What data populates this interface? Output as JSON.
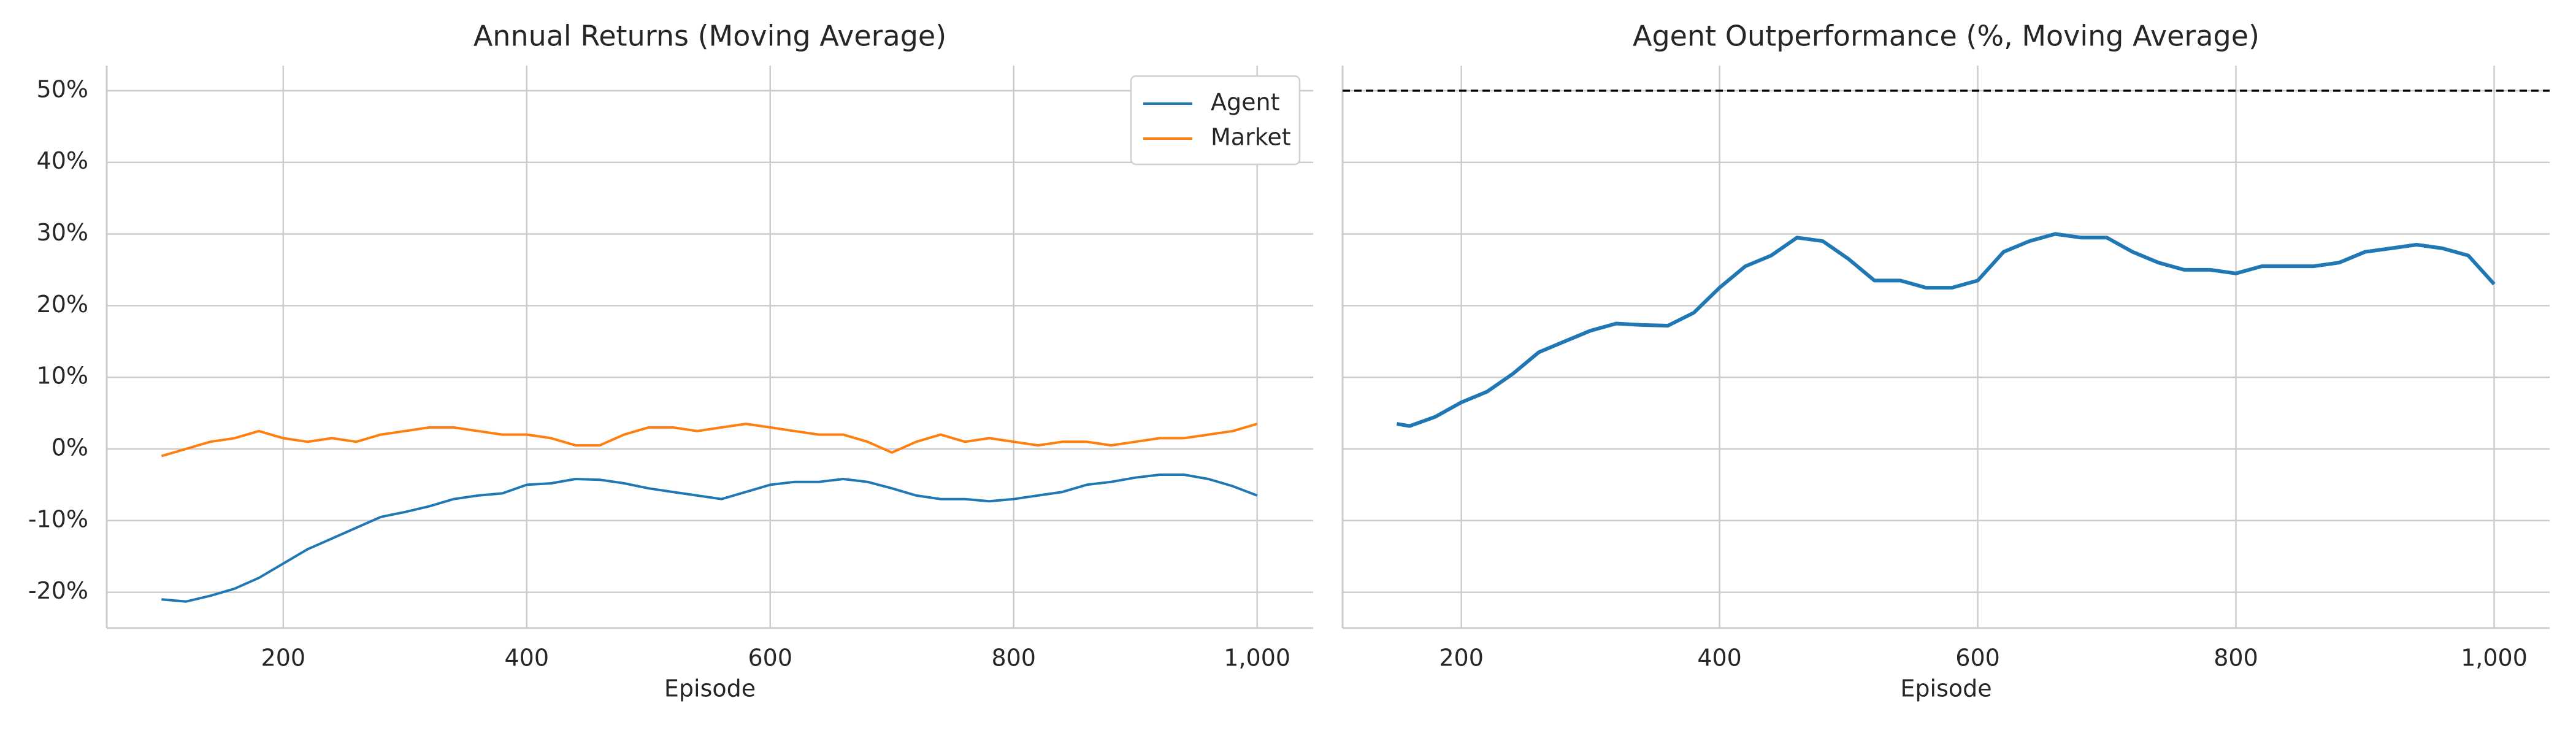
{
  "chart_data": [
    {
      "type": "line",
      "title": "Annual Returns (Moving Average)",
      "xlabel": "Episode",
      "x": [
        100,
        120,
        140,
        160,
        180,
        200,
        220,
        240,
        260,
        280,
        300,
        320,
        340,
        360,
        380,
        400,
        420,
        440,
        460,
        480,
        500,
        520,
        540,
        560,
        580,
        600,
        620,
        640,
        660,
        680,
        700,
        720,
        740,
        760,
        780,
        800,
        820,
        840,
        860,
        880,
        900,
        920,
        940,
        960,
        980,
        1000
      ],
      "series": [
        {
          "name": "Agent",
          "color": "#1f77b4",
          "values": [
            -21,
            -21.3,
            -20.5,
            -19.5,
            -18,
            -16,
            -14,
            -12.5,
            -11,
            -9.5,
            -8.8,
            -8,
            -7,
            -6.5,
            -6.2,
            -5,
            -4.8,
            -4.2,
            -4.3,
            -4.8,
            -5.5,
            -6,
            -6.5,
            -7,
            -6,
            -5,
            -4.6,
            -4.6,
            -4.2,
            -4.6,
            -5.5,
            -6.5,
            -7,
            -7,
            -7.3,
            -7,
            -6.5,
            -6,
            -5,
            -4.6,
            -4,
            -3.6,
            -3.6,
            -4.2,
            -5.2,
            -6.5
          ]
        },
        {
          "name": "Market",
          "color": "#ff7f0e",
          "values": [
            -1,
            0,
            1,
            1.5,
            2.5,
            1.5,
            1,
            1.5,
            1,
            2,
            2.5,
            3,
            3,
            2.5,
            2,
            2,
            1.5,
            0.5,
            0.5,
            2,
            3,
            3,
            2.5,
            3,
            3.5,
            3,
            2.5,
            2,
            2,
            1,
            -0.5,
            1,
            2,
            1,
            1.5,
            1,
            0.5,
            1,
            1,
            0.5,
            1,
            1.5,
            1.5,
            2,
            2.5,
            3.5
          ]
        }
      ],
      "xlim": [
        55,
        1046
      ],
      "xticks": [
        200,
        400,
        600,
        800,
        {
          "value": 1000,
          "label": "1,000"
        }
      ],
      "ylim": [
        -25,
        53.5
      ],
      "yticks": [
        {
          "value": -20,
          "label": "-20%"
        },
        {
          "value": -10,
          "label": "-10%"
        },
        {
          "value": 0,
          "label": "0%"
        },
        {
          "value": 10,
          "label": "10%"
        },
        {
          "value": 20,
          "label": "20%"
        },
        {
          "value": 30,
          "label": "30%"
        },
        {
          "value": 40,
          "label": "40%"
        },
        {
          "value": 50,
          "label": "50%"
        }
      ],
      "grid": true,
      "legend": "upper right"
    },
    {
      "type": "line",
      "title": "Agent Outperformance (%, Moving Average)",
      "xlabel": "Episode",
      "x": [
        150,
        160,
        180,
        200,
        220,
        240,
        260,
        280,
        300,
        320,
        340,
        360,
        380,
        400,
        420,
        440,
        460,
        480,
        500,
        520,
        540,
        560,
        580,
        600,
        620,
        640,
        660,
        680,
        700,
        720,
        740,
        760,
        780,
        800,
        820,
        840,
        860,
        880,
        900,
        920,
        940,
        960,
        980,
        1000
      ],
      "values": [
        3.5,
        3.2,
        4.5,
        6.5,
        8,
        10.5,
        13.5,
        15,
        16.5,
        17.5,
        17.3,
        17.2,
        19,
        22.5,
        25.5,
        27,
        29.5,
        29,
        26.5,
        23.5,
        23.5,
        22.5,
        22.5,
        23.5,
        27.5,
        29,
        30,
        29.5,
        29.5,
        27.5,
        26,
        25,
        25,
        24.5,
        25.5,
        25.5,
        25.5,
        26,
        27.5,
        28,
        28.5,
        28,
        27,
        23
      ],
      "color": "#1f77b4",
      "xlim": [
        108,
        1043
      ],
      "xticks": [
        200,
        400,
        600,
        800,
        {
          "value": 1000,
          "label": "1,000"
        }
      ],
      "ylim": [
        -25,
        53.5
      ],
      "yticks": [
        -20,
        -10,
        0,
        10,
        20,
        30,
        40,
        50
      ],
      "hline": 50,
      "hline_color": "#000000",
      "grid": true
    }
  ]
}
